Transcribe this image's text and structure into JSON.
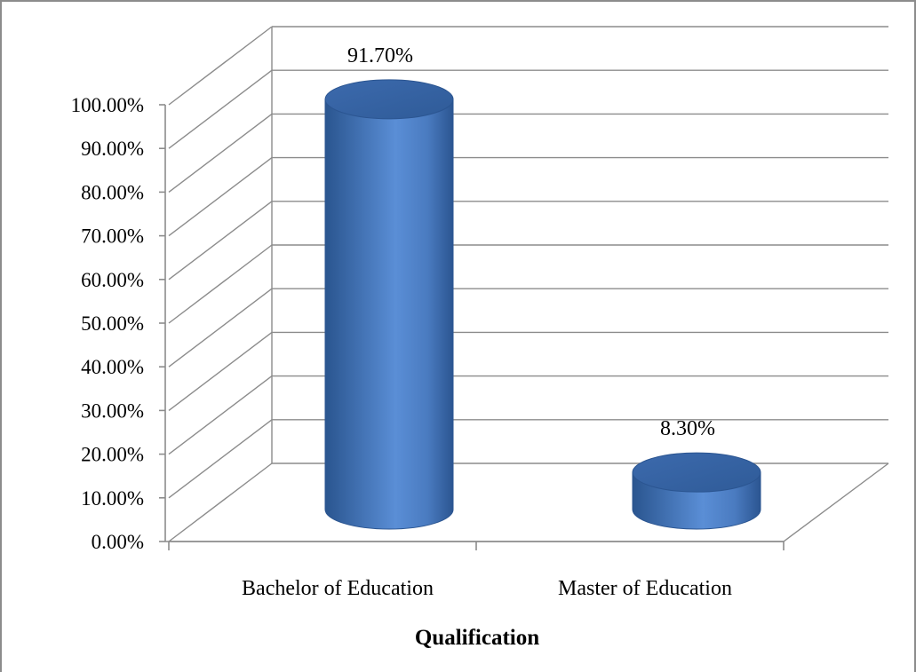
{
  "chart_data": {
    "type": "bar",
    "style": "3d-cylinder",
    "title": "",
    "xlabel": "Qualification",
    "ylabel": "",
    "categories": [
      "Bachelor of Education",
      "Master of Education"
    ],
    "series": [
      {
        "values": [
          91.7,
          8.3
        ]
      }
    ],
    "data_labels": [
      "91.70%",
      "8.30%"
    ],
    "ylim": [
      0,
      100
    ],
    "ytick_step": 10,
    "y_tick_labels": [
      "0.00%",
      "10.00%",
      "20.00%",
      "30.00%",
      "40.00%",
      "50.00%",
      "60.00%",
      "70.00%",
      "80.00%",
      "90.00%",
      "100.00%"
    ],
    "grid": true,
    "legend": "none",
    "colors": {
      "bar": "#4a7bc0",
      "bar_dark": "#2d5a9a",
      "bar_light": "#7fa8e0",
      "grid": "#8c8c8c"
    }
  }
}
